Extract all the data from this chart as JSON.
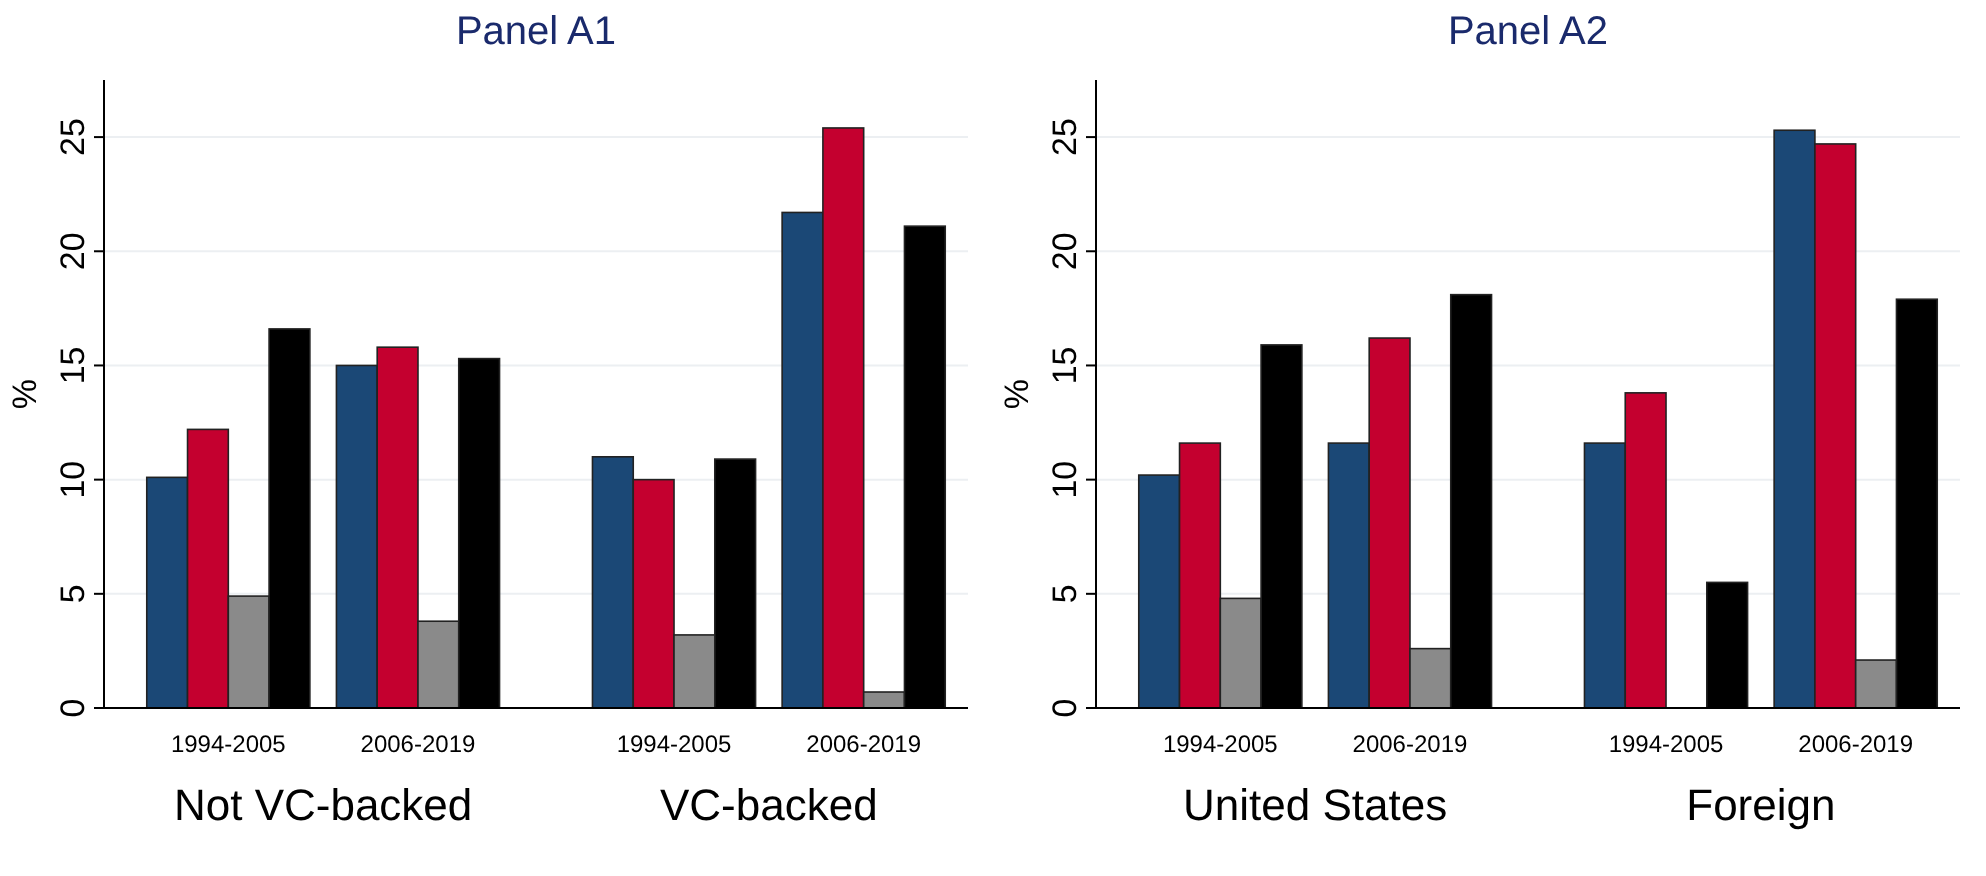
{
  "chart_data": [
    {
      "type": "bar",
      "title": "Panel A1",
      "ylabel": "%",
      "categories": [
        "1994-2005",
        "2006-2019",
        "1994-2005",
        "2006-2019"
      ],
      "annotations": [
        "Not VC-backed",
        "VC-backed"
      ],
      "ylim": [
        0,
        27.5
      ],
      "yticks": [
        0,
        5,
        10,
        15,
        20,
        25
      ],
      "grid": "y",
      "series": [
        {
          "color": "#1b4876",
          "values": [
            10.1,
            15.0,
            11.0,
            21.7
          ]
        },
        {
          "color": "#c4002f",
          "values": [
            12.2,
            15.8,
            10.0,
            25.4
          ]
        },
        {
          "color": "#8a8a8a",
          "values": [
            4.9,
            3.8,
            3.2,
            0.7
          ]
        },
        {
          "color": "#000000",
          "values": [
            16.6,
            15.3,
            10.9,
            21.1
          ]
        }
      ]
    },
    {
      "type": "bar",
      "title": "Panel A2",
      "ylabel": "%",
      "categories": [
        "1994-2005",
        "2006-2019",
        "1994-2005",
        "2006-2019"
      ],
      "annotations": [
        "United States",
        "Foreign"
      ],
      "ylim": [
        0,
        27.5
      ],
      "yticks": [
        0,
        5,
        10,
        15,
        20,
        25
      ],
      "grid": "y",
      "series": [
        {
          "color": "#1b4876",
          "values": [
            10.2,
            11.6,
            11.6,
            25.3
          ]
        },
        {
          "color": "#c4002f",
          "values": [
            11.6,
            16.2,
            13.8,
            24.7
          ]
        },
        {
          "color": "#8a8a8a",
          "values": [
            4.8,
            2.6,
            null,
            2.1
          ]
        },
        {
          "color": "#000000",
          "values": [
            15.9,
            18.1,
            5.5,
            17.9
          ]
        }
      ]
    }
  ]
}
